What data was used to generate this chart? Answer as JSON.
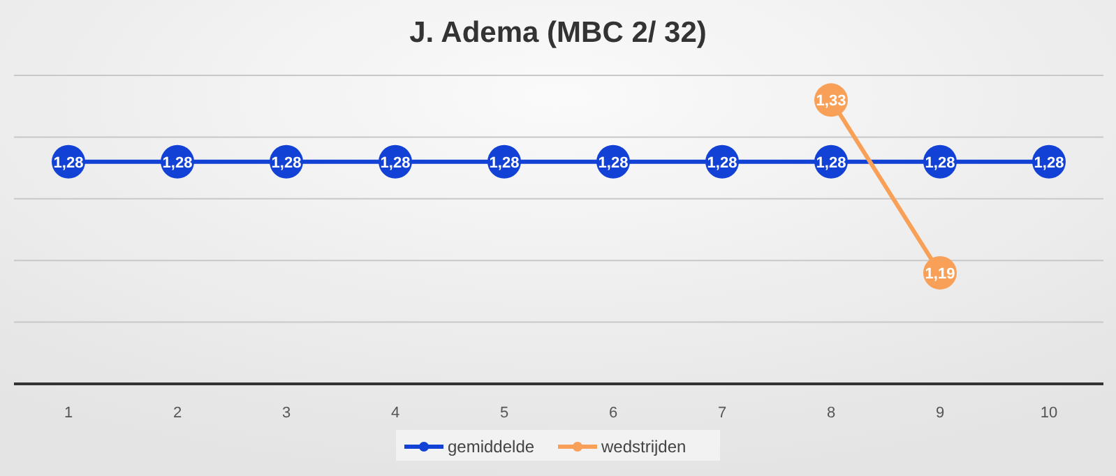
{
  "chart_data": {
    "type": "line",
    "title": "J. Adema (MBC 2/ 32)",
    "categories": [
      "1",
      "2",
      "3",
      "4",
      "5",
      "6",
      "7",
      "8",
      "9",
      "10"
    ],
    "series": [
      {
        "name": "gemiddelde",
        "color": "#1241d6",
        "values": [
          1.28,
          1.28,
          1.28,
          1.28,
          1.28,
          1.28,
          1.28,
          1.28,
          1.28,
          1.28
        ],
        "value_labels": [
          "1,28",
          "1,28",
          "1,28",
          "1,28",
          "1,28",
          "1,28",
          "1,28",
          "1,28",
          "1,28",
          "1,28"
        ]
      },
      {
        "name": "wedstrijden",
        "color": "#f9a058",
        "values": [
          null,
          null,
          null,
          null,
          null,
          null,
          null,
          1.33,
          1.19,
          null
        ],
        "value_labels": [
          null,
          null,
          null,
          null,
          null,
          null,
          null,
          "1,33",
          "1,19",
          null
        ]
      }
    ],
    "ylim": [
      1.1,
      1.35
    ],
    "yticks": [
      {
        "value": 1.1,
        "label": null
      },
      {
        "value": 1.15,
        "label": null
      },
      {
        "value": 1.2,
        "label": null
      },
      {
        "value": 1.25,
        "label": null
      },
      {
        "value": 1.3,
        "label": null
      },
      {
        "value": 1.35,
        "label": null
      }
    ],
    "tick_labels": "x",
    "grid": "y",
    "legend": "bottom",
    "marker": "circle",
    "line_style": "solid"
  }
}
